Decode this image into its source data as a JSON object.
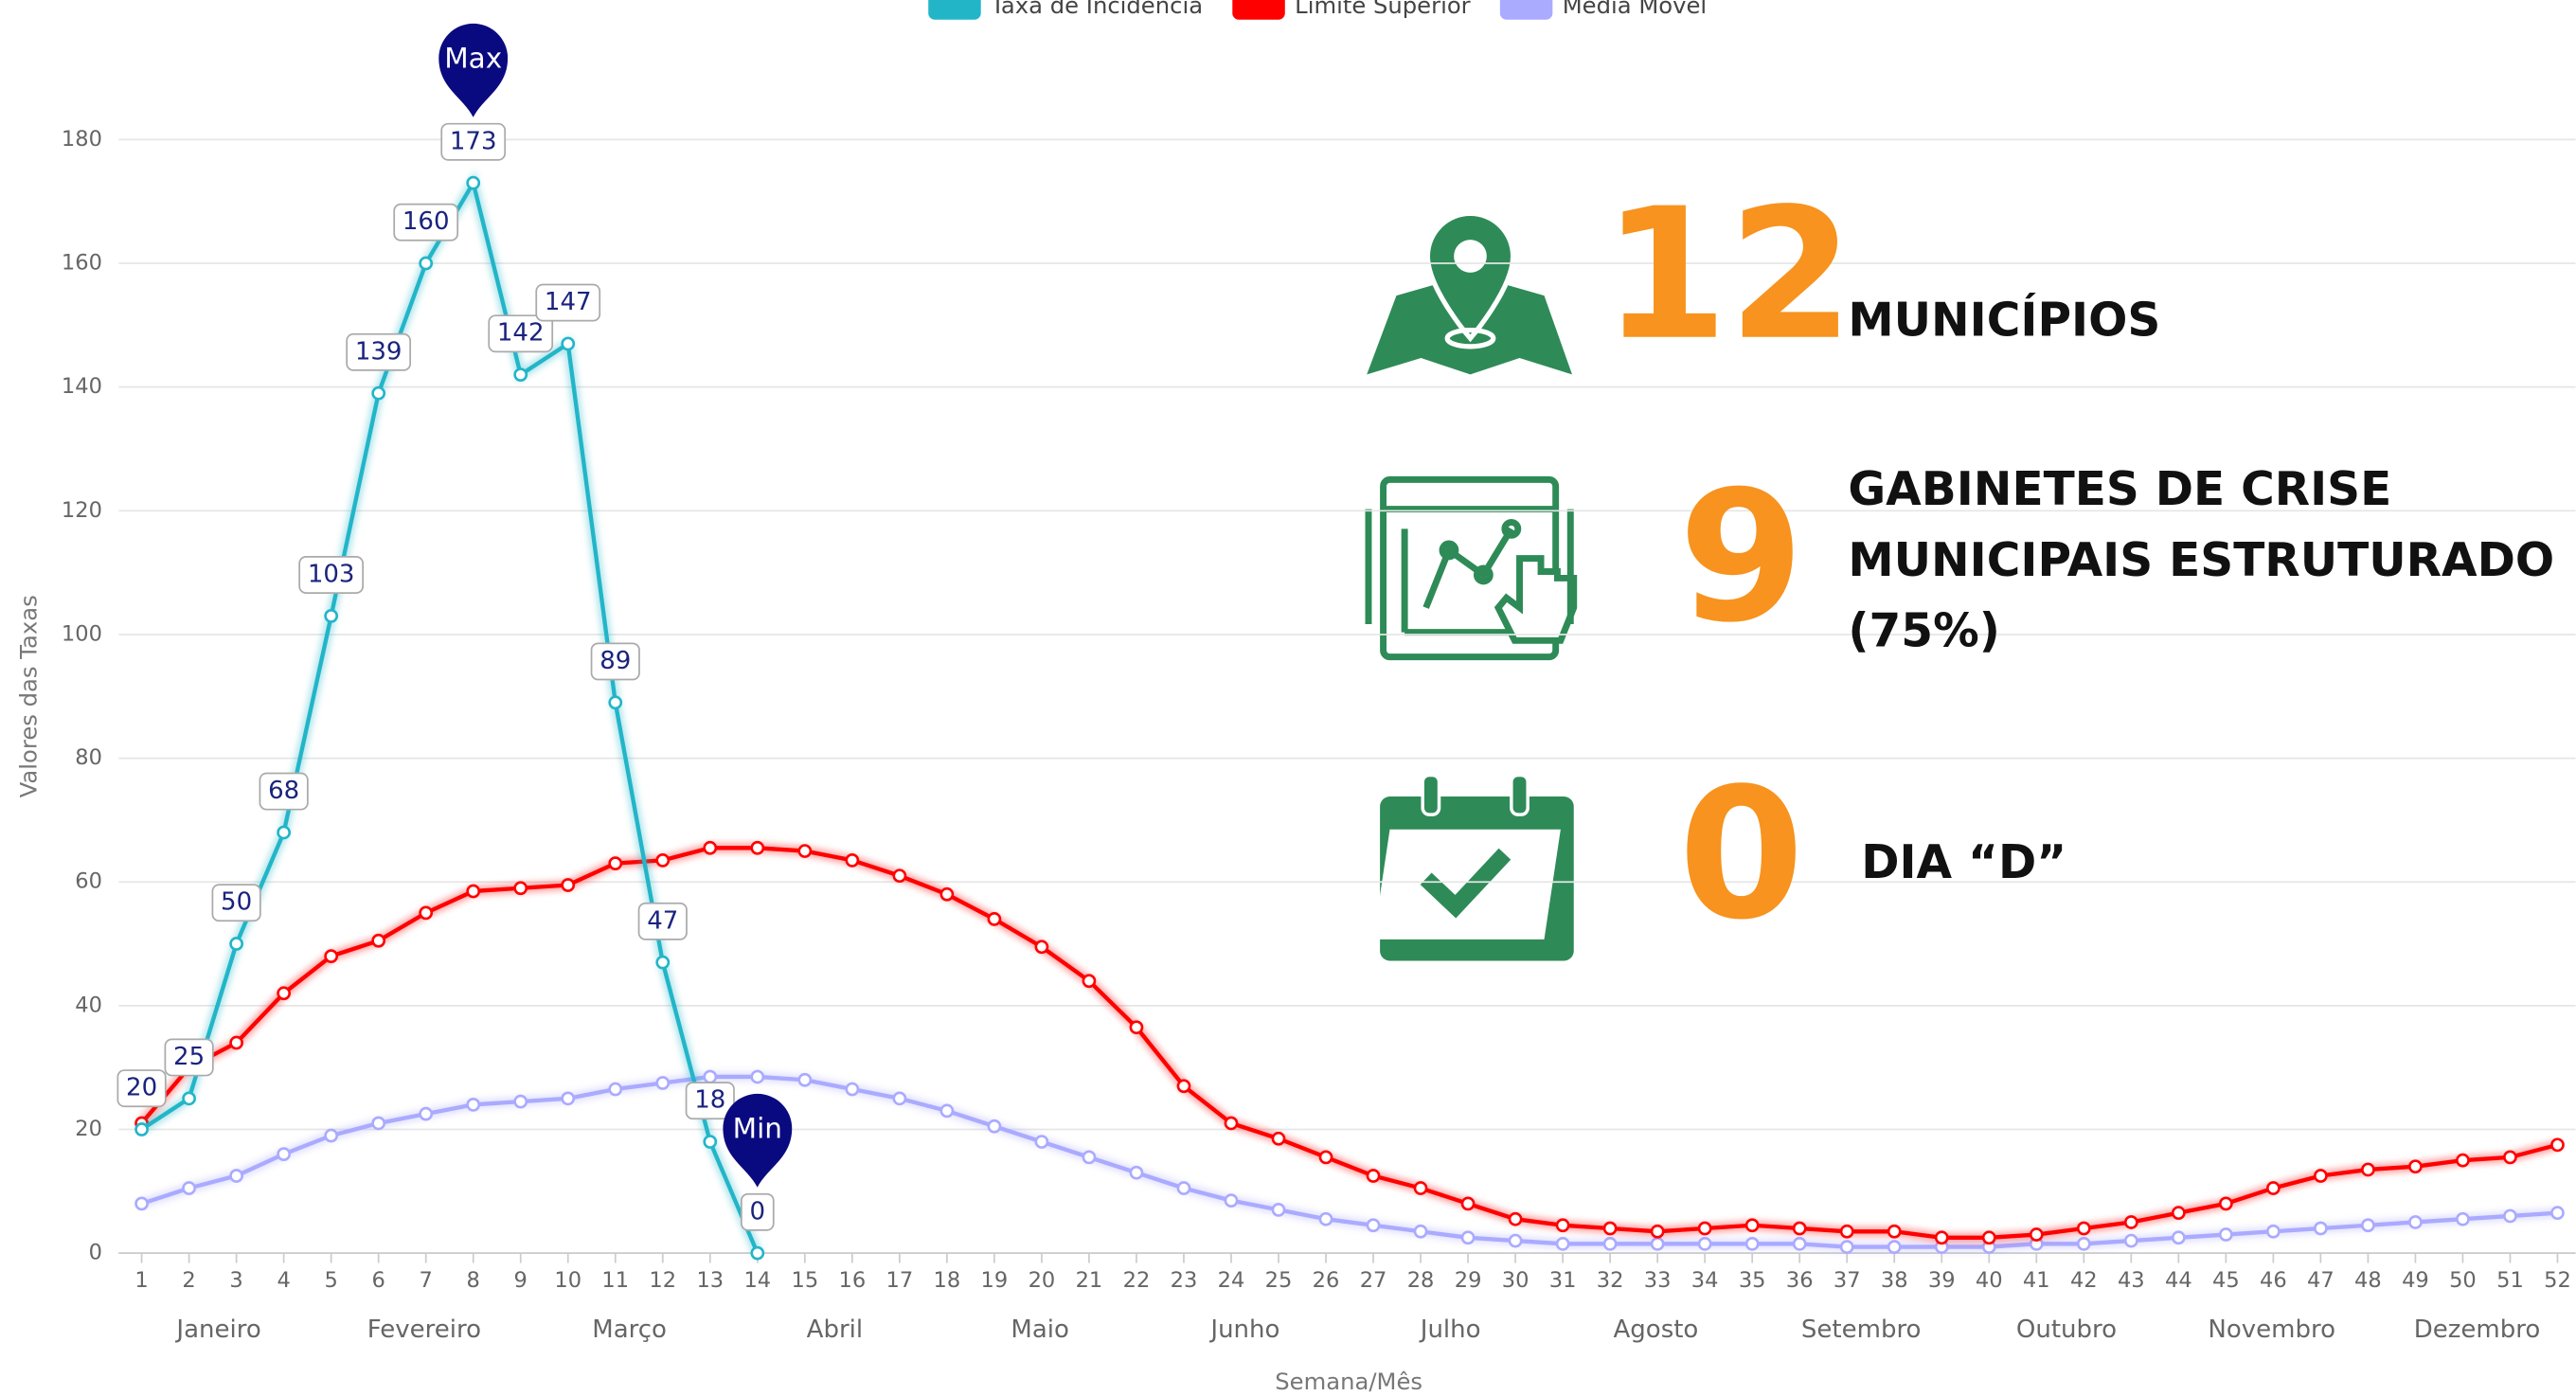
{
  "chart_data": {
    "type": "line",
    "x_axis_label": "Semana/Mês",
    "y_axis_label": "Valores das Taxas",
    "x": [
      1,
      2,
      3,
      4,
      5,
      6,
      7,
      8,
      9,
      10,
      11,
      12,
      13,
      14,
      15,
      16,
      17,
      18,
      19,
      20,
      21,
      22,
      23,
      24,
      25,
      26,
      27,
      28,
      29,
      30,
      31,
      32,
      33,
      34,
      35,
      36,
      37,
      38,
      39,
      40,
      41,
      42,
      43,
      44,
      45,
      46,
      47,
      48,
      49,
      50,
      51,
      52
    ],
    "xlim": [
      1,
      52
    ],
    "months": [
      "Janeiro",
      "Fevereiro",
      "Março",
      "Abril",
      "Maio",
      "Junho",
      "Julho",
      "Agosto",
      "Setembro",
      "Outubro",
      "Novembro",
      "Dezembro"
    ],
    "ylim": [
      0,
      180
    ],
    "yticks": [
      0,
      20,
      40,
      60,
      80,
      100,
      120,
      140,
      160,
      180
    ],
    "grid": true,
    "legend": "top",
    "annotations": [
      "Max",
      "Min"
    ],
    "series": [
      {
        "name": "Taxa de Incidência",
        "color": "#22b5c8",
        "data_labels": true,
        "values": [
          20,
          25,
          50,
          68,
          103,
          139,
          160,
          173,
          142,
          147,
          89,
          47,
          18,
          0,
          null,
          null,
          null,
          null,
          null,
          null,
          null,
          null,
          null,
          null,
          null,
          null,
          null,
          null,
          null,
          null,
          null,
          null,
          null,
          null,
          null,
          null,
          null,
          null,
          null,
          null,
          null,
          null,
          null,
          null,
          null,
          null,
          null,
          null,
          null,
          null,
          null,
          null
        ]
      },
      {
        "name": "Limite Superior",
        "color": "#ff0000",
        "values": [
          21,
          30,
          34,
          42,
          48,
          50.5,
          55,
          58.5,
          59,
          59.5,
          63,
          63.5,
          65.5,
          65.5,
          65,
          63.5,
          61,
          58,
          54,
          49.5,
          44,
          36.5,
          27,
          21,
          18.5,
          15.5,
          12.5,
          10.5,
          8,
          5.5,
          4.5,
          4,
          3.5,
          4,
          4.5,
          4,
          3.5,
          3.5,
          2.5,
          2.5,
          3,
          4,
          5,
          6.5,
          8,
          10.5,
          12.5,
          13.5,
          14,
          15,
          15.5,
          17.5
        ]
      },
      {
        "name": "Média Móvel",
        "color": "#aaaaff",
        "values": [
          8,
          10.5,
          12.5,
          16,
          19,
          21,
          22.5,
          24,
          24.5,
          25,
          26.5,
          27.5,
          28.5,
          28.5,
          28,
          26.5,
          25,
          23,
          20.5,
          18,
          15.5,
          13,
          10.5,
          8.5,
          7,
          5.5,
          4.5,
          3.5,
          2.5,
          2,
          1.5,
          1.5,
          1.5,
          1.5,
          1.5,
          1.5,
          1,
          1,
          1,
          1,
          1.5,
          1.5,
          2,
          2.5,
          3,
          3.5,
          4,
          4.5,
          5,
          5.5,
          6,
          6.5
        ]
      }
    ]
  },
  "stats": [
    {
      "value": "12",
      "lines": [
        "MUNICÍPIOS"
      ]
    },
    {
      "value": "9",
      "lines": [
        "GABINETES DE CRISE",
        "MUNICIPAIS ESTRUTURADO",
        "(75%)"
      ]
    },
    {
      "value": "0",
      "lines": [
        "DIA “D”"
      ]
    }
  ]
}
